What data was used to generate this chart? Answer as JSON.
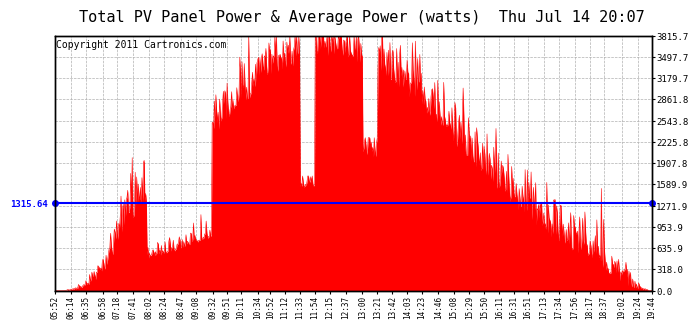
{
  "title": "Total PV Panel Power & Average Power (watts)  Thu Jul 14 20:07",
  "copyright": "Copyright 2011 Cartronics.com",
  "average_power": 1315.64,
  "y_max": 3815.7,
  "y_min": 0.0,
  "ytick_labels": [
    "0.0",
    "318.0",
    "635.9",
    "953.9",
    "1271.9",
    "1589.9",
    "1907.8",
    "2225.8",
    "2543.8",
    "2861.8",
    "3179.7",
    "3497.7",
    "3815.7"
  ],
  "ytick_values": [
    0.0,
    318.0,
    635.9,
    953.9,
    1271.9,
    1589.9,
    1907.8,
    2225.8,
    2543.8,
    2861.8,
    3179.7,
    3497.7,
    3815.7
  ],
  "xtick_labels": [
    "05:52",
    "06:14",
    "06:35",
    "06:58",
    "07:18",
    "07:41",
    "08:02",
    "08:24",
    "08:47",
    "09:08",
    "09:32",
    "09:51",
    "10:11",
    "10:34",
    "10:52",
    "11:12",
    "11:33",
    "11:54",
    "12:15",
    "12:37",
    "13:00",
    "13:21",
    "13:42",
    "14:03",
    "14:23",
    "14:46",
    "15:08",
    "15:29",
    "15:50",
    "16:11",
    "16:31",
    "16:51",
    "17:13",
    "17:34",
    "17:56",
    "18:17",
    "18:37",
    "19:02",
    "19:24",
    "19:44"
  ],
  "fill_color": "#ff0000",
  "avg_line_color": "#0000ff",
  "background_color": "#ffffff",
  "grid_color": "#b0b0b0",
  "title_fontsize": 11,
  "copyright_fontsize": 7
}
